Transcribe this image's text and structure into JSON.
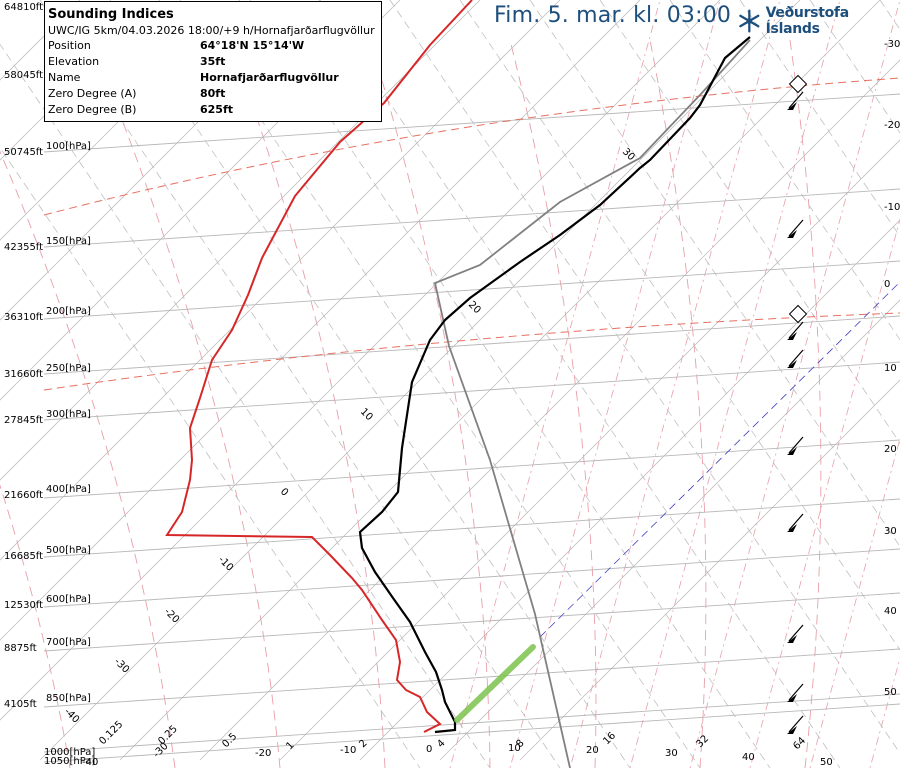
{
  "header": {
    "title": "Fim. 5. mar. kl. 03:00",
    "brand": "Veðurstofa Íslands",
    "brand_color": "#1d4f7d"
  },
  "info_box": {
    "title": "Sounding Indices",
    "subtitle": "UWC/IG 5km/04.03.2026 18:00/+9 h/Hornafjarðarflugvöllur",
    "rows": [
      {
        "key": "Position",
        "value": "64°18'N 15°14'W"
      },
      {
        "key": "Elevation",
        "value": "35ft"
      },
      {
        "key": "Name",
        "value": "Hornafjarðarflugvöllur"
      },
      {
        "key": "Zero Degree (A)",
        "value": "80ft"
      },
      {
        "key": "Zero Degree (B)",
        "value": "625ft"
      }
    ]
  },
  "chart_data": {
    "type": "line",
    "title": "",
    "pressure_levels": [
      {
        "label": "100[hPa]",
        "altitude": "50745ft",
        "p": 100
      },
      {
        "label": "150[hPa]",
        "altitude": "42355ft",
        "p": 150
      },
      {
        "label": "200[hPa]",
        "altitude": "36310ft",
        "p": 200
      },
      {
        "label": "250[hPa]",
        "altitude": "31660ft",
        "p": 250
      },
      {
        "label": "300[hPa]",
        "altitude": "27845ft",
        "p": 300
      },
      {
        "label": "400[hPa]",
        "altitude": "21660ft",
        "p": 400
      },
      {
        "label": "500[hPa]",
        "altitude": "16685ft",
        "p": 500
      },
      {
        "label": "600[hPa]",
        "altitude": "12530ft",
        "p": 600
      },
      {
        "label": "700[hPa]",
        "altitude": "8875ft",
        "p": 700
      },
      {
        "label": "850[hPa]",
        "altitude": "4105ft",
        "p": 850
      },
      {
        "label": "1000[hPa]",
        "altitude": "",
        "p": 1000
      },
      {
        "label": "1050[hPa]",
        "altitude": "",
        "p": 1050
      }
    ],
    "top_altitudes": [
      "64810ft",
      "58045ft"
    ],
    "right_temperature_labels": [
      "-30",
      "-20",
      "-10",
      "0",
      "10",
      "20",
      "30",
      "40",
      "50"
    ],
    "isotherm_labels": [
      "30",
      "20",
      "10",
      "0",
      "-10",
      "-20",
      "-30",
      "-40"
    ],
    "bottom_labels": [
      "-40",
      "-30",
      "0.25",
      "-20",
      "0.5",
      "1",
      "-10",
      "2",
      "0",
      "4",
      "10",
      "8",
      "20",
      "16",
      "30",
      "32",
      "40",
      "64",
      "50",
      "0.125"
    ],
    "series": [
      {
        "id": "temperature",
        "color": "#000000"
      },
      {
        "id": "dewpoint",
        "color": "#d62728"
      },
      {
        "id": "lifted_parcel",
        "color": "#808080"
      },
      {
        "id": "surface_layer",
        "color": "#7cc34c"
      }
    ],
    "colors": {
      "isotherm": "#c0c0c0",
      "dry_adiabat": "#c0c0c0",
      "moist_adiabat": "#e8a0a8",
      "mixing_ratio": "#e8a0a8",
      "tropopause_dashed": "#e87060",
      "reference_dashed": "#4040c0"
    },
    "wind_barbs_count": 11
  }
}
